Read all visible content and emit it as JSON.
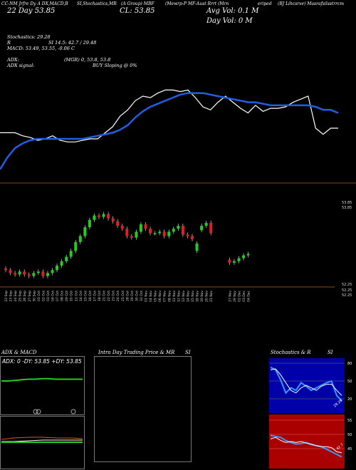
{
  "header": {
    "col1": "CC-NM Jrfre Dy A DX,MACD,B",
    "col2": "SI,Stochastics,MR",
    "col3": "(A Group) MBF",
    "col4": "(Mewrp-P MF-Aust Rrrt (Mrn",
    "col5": "eriped",
    "col6": "(BJ Lihcsrve) Masrafsilsstrrcm"
  },
  "summary": {
    "date_line": "22 Day   53.85",
    "close_line": "CL: 53.85",
    "avg_vol": "Avg Vol: 0.1  M",
    "day_vol": "Day Vol: 0   M"
  },
  "indicators": {
    "stoch": "Stochastics: 29.28",
    "stoch_vals": "SI 14.5: 42.7 / 29.48",
    "r_label": "R",
    "macd": "MACD: 53.49, 53.55, -0.06   C",
    "adx": "ADX:",
    "adx_vals": "(MGR) 0,  53.8,  53.8",
    "adx_signal": "ADX  signal:",
    "signal_text": "BUY Sloping @ 0%"
  },
  "chart_data": [
    {
      "type": "line",
      "name": "price-with-moving-average",
      "series": [
        {
          "values": [
            54.2,
            54.2,
            54.2,
            54.0,
            53.9,
            53.7,
            53.8,
            54.0,
            53.7,
            53.6,
            53.6,
            53.7,
            53.8,
            53.8,
            54.2,
            54.6,
            55.3,
            55.7,
            56.3,
            56.6,
            56.5,
            56.8,
            57.0,
            57.0,
            56.9,
            57.0,
            56.5,
            55.9,
            55.7,
            56.2,
            56.6,
            56.2,
            55.8,
            55.5,
            56.0,
            55.6,
            55.8,
            55.8,
            55.9,
            56.2,
            56.4,
            56.6,
            54.5,
            54.1,
            54.5,
            54.5
          ]
        },
        {
          "values": [
            51.8,
            52.6,
            53.2,
            53.5,
            53.7,
            53.8,
            53.8,
            53.8,
            53.8,
            53.8,
            53.8,
            53.8,
            53.9,
            54.0,
            54.1,
            54.2,
            54.4,
            54.7,
            55.2,
            55.6,
            55.9,
            56.1,
            56.3,
            56.5,
            56.7,
            56.8,
            56.8,
            56.8,
            56.7,
            56.6,
            56.5,
            56.4,
            56.3,
            56.2,
            56.2,
            56.1,
            56.0,
            56.0,
            56.0,
            56.0,
            56.0,
            56.0,
            55.9,
            55.7,
            55.7,
            55.5
          ]
        }
      ],
      "ylim": [
        51,
        58
      ]
    },
    {
      "type": "bar",
      "name": "daily-candles",
      "categories": [
        "22 Sep",
        "23 Sep",
        "24 Sep",
        "25 Sep",
        "26 Sep",
        "27 Sep",
        "30 Sep",
        "01 Oct",
        "02 Oct",
        "03 Oct",
        "04 Oct",
        "07 Oct",
        "08 Oct",
        "09 Oct",
        "10 Oct",
        "11 Oct",
        "14 Oct",
        "15 Oct",
        "16 Oct",
        "17 Oct",
        "18 Oct",
        "21 Oct",
        "22 Oct",
        "23 Oct",
        "24 Oct",
        "25 Oct",
        "28 Oct",
        "29 Oct",
        "30 Oct",
        "31 Oct",
        "01 Nov",
        "04 Nov",
        "05 Nov",
        "06 Nov",
        "07 Nov",
        "08 Nov",
        "11 Nov",
        "12 Nov",
        "13 Nov",
        "14 Nov",
        "15 Nov",
        "18 Nov",
        "19 Nov",
        "20 Nov",
        "21 Nov",
        "22 Nov",
        "25 Nov",
        "26 Nov",
        "27 Nov",
        "29 Nov",
        "02 Dec",
        "03 Dec",
        "04 Dec"
      ],
      "series": [
        {
          "name": "open",
          "values": [
            53.4,
            53.3,
            53.1,
            53.0,
            53.2,
            53.0,
            52.9,
            53.1,
            53.2,
            52.9,
            53.1,
            53.3,
            53.6,
            53.9,
            54.2,
            54.6,
            55.2,
            55.6,
            56.2,
            56.7,
            57.0,
            56.9,
            57.1,
            56.8,
            56.6,
            56.3,
            56.1,
            55.6,
            55.5,
            55.9,
            56.4,
            56.1,
            55.8,
            55.8,
            55.9,
            55.6,
            55.9,
            56.1,
            56.3,
            55.7,
            55.6,
            54.6,
            56.0,
            56.3,
            56.5,
            55.8,
            55.6,
            55.8,
            54.0,
            53.8,
            53.9,
            54.1,
            54.3
          ]
        },
        {
          "name": "close",
          "values": [
            53.3,
            53.1,
            53.0,
            53.2,
            53.0,
            52.9,
            53.1,
            53.2,
            52.9,
            53.1,
            53.3,
            53.6,
            53.9,
            54.2,
            54.6,
            55.2,
            55.6,
            56.2,
            56.7,
            57.0,
            56.9,
            57.1,
            56.8,
            56.6,
            56.3,
            56.1,
            55.6,
            55.5,
            55.9,
            56.4,
            56.1,
            55.8,
            55.8,
            55.9,
            55.6,
            55.9,
            56.1,
            56.3,
            55.7,
            55.6,
            55.4,
            55.1,
            56.3,
            56.5,
            55.8,
            55.6,
            55.8,
            55.9,
            53.8,
            53.9,
            54.1,
            54.3,
            54.4
          ]
        }
      ],
      "ylim": [
        52.25,
        57.8
      ]
    },
    {
      "type": "line",
      "name": "adx-panel",
      "series": [
        {
          "values": [
            30,
            30,
            31,
            32,
            33,
            33,
            34,
            34,
            33,
            33,
            33,
            33,
            33
          ]
        }
      ],
      "ylim": [
        0,
        60
      ]
    },
    {
      "type": "line",
      "name": "stochastics-panel",
      "series": [
        {
          "values": [
            85,
            80,
            60,
            35,
            45,
            40,
            55,
            48,
            40,
            45,
            50,
            55,
            58,
            30,
            20
          ]
        },
        {
          "values": [
            80,
            82,
            70,
            55,
            40,
            35,
            45,
            50,
            45,
            40,
            48,
            52,
            52,
            40,
            30
          ]
        }
      ],
      "ylim": [
        0,
        100
      ]
    },
    {
      "type": "line",
      "name": "si-panel",
      "series": [
        {
          "values": [
            62,
            60,
            58,
            52,
            48,
            45,
            46,
            48,
            44,
            42,
            40,
            35,
            30,
            25,
            20
          ]
        },
        {
          "values": [
            55,
            58,
            52,
            48,
            50,
            48,
            50,
            47,
            45,
            42,
            40,
            40,
            38,
            30,
            28
          ]
        }
      ],
      "ylim": [
        0,
        100
      ]
    }
  ],
  "axis_labels": {
    "right_top": "53.85",
    "right_mid": "53.85",
    "right_low": "52.25",
    "right_low2": "52.25",
    "right_low3": "52.25"
  },
  "panels": {
    "adx_title": "ADX  & MACD",
    "adx_readout": "ADX: 0   -DY: 53.85   +DY: 53.85",
    "intra_title": "Intra  Day Trading Price  & MR",
    "si_title": "SI",
    "stoch_title": "Stochastics & R",
    "si2_title": "SI",
    "stoch_scale": [
      "80",
      "50",
      "20"
    ],
    "si_scale": [
      "55",
      "50",
      "45"
    ],
    "stoch_end_label": "29.28",
    "si_end_label": "42.7"
  },
  "colors": {
    "ma_blue": "#1e5fe6",
    "price_white": "#ffffff",
    "up_green": "#22cc22",
    "down_red": "#e02020",
    "si_red_bg": "#aa0000",
    "stoch_blue_bg": "#0000aa",
    "adx_green": "#22cc22",
    "macd_orange": "#cc6600"
  }
}
